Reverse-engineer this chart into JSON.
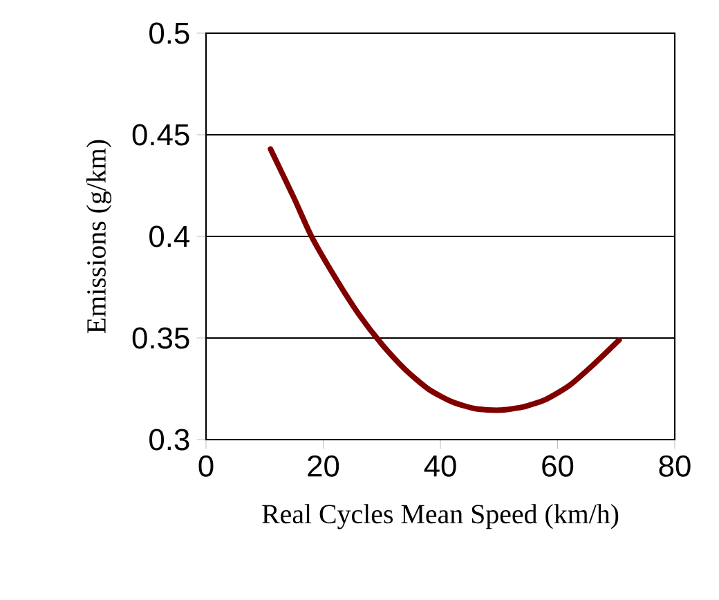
{
  "chart_data": {
    "type": "line",
    "xlabel": "Real Cycles Mean Speed (km/h)",
    "ylabel": "Emissions (g/km)",
    "x": [
      11,
      15,
      18,
      22,
      26,
      30,
      34,
      38,
      42,
      46,
      50,
      54,
      58,
      62,
      66,
      70.5
    ],
    "series": [
      {
        "color": "#800000",
        "values": [
          0.443,
          0.419,
          0.4,
          0.38,
          0.362,
          0.347,
          0.3345,
          0.3248,
          0.3186,
          0.3152,
          0.3145,
          0.316,
          0.3198,
          0.3266,
          0.3366,
          0.349
        ]
      }
    ],
    "xlim": [
      0,
      80
    ],
    "ylim": [
      0.3,
      0.5
    ],
    "xticks": [
      0,
      20,
      40,
      60,
      80
    ],
    "yticks": [
      0.3,
      0.35,
      0.4,
      0.45,
      0.5
    ],
    "grid": "y",
    "marker": "none",
    "line_style": "solid"
  }
}
